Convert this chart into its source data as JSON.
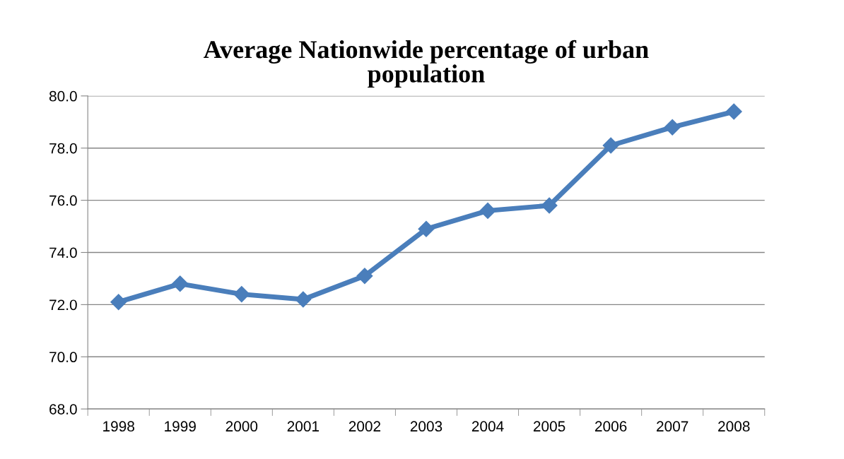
{
  "chart_data": {
    "type": "line",
    "title": "Average Nationwide percentage of urban\npopulation",
    "categories": [
      "1998",
      "1999",
      "2000",
      "2001",
      "2002",
      "2003",
      "2004",
      "2005",
      "2006",
      "2007",
      "2008"
    ],
    "series": [
      {
        "color": "#4a7ebb",
        "values": [
          72.1,
          72.8,
          72.4,
          72.2,
          73.1,
          74.9,
          75.6,
          75.8,
          78.1,
          78.8,
          79.4
        ]
      }
    ],
    "ylim": [
      68.0,
      80.0
    ],
    "yticks": [
      {
        "value": 68,
        "label": "68.0"
      },
      {
        "value": 70,
        "label": "70.0"
      },
      {
        "value": 72,
        "label": "72.0"
      },
      {
        "value": 74,
        "label": "74.0"
      },
      {
        "value": 76,
        "label": "76.0"
      },
      {
        "value": 78,
        "label": "78.0"
      },
      {
        "value": 80,
        "label": "80.0"
      }
    ],
    "grid": "y",
    "marker": "diamond",
    "line_style": "solid"
  }
}
